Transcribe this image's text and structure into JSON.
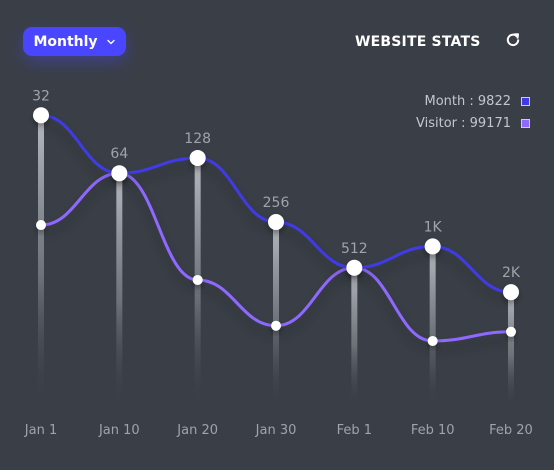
{
  "header": {
    "dropdown_label": "Monthly",
    "title": "WEBSITE STATS"
  },
  "legend": {
    "month_text": "Month : 9822",
    "visitor_text": "Visitor : 99171"
  },
  "colors": {
    "background": "#3a3f47",
    "accent": "#4a45ff",
    "month_line": "#3f3ae6",
    "visitor_line": "#8f68ff",
    "text_muted": "#c3c6cc"
  },
  "chart_data": {
    "type": "line",
    "categories": [
      "Jan 1",
      "Jan 10",
      "Jan 20",
      "Jan 30",
      "Feb 1",
      "Feb 10",
      "Feb 20"
    ],
    "point_labels": [
      "32",
      "64",
      "128",
      "256",
      "512",
      "1K",
      "2K"
    ],
    "series": [
      {
        "name": "Month",
        "values": [
          0.95,
          0.76,
          0.81,
          0.6,
          0.45,
          0.52,
          0.37
        ]
      },
      {
        "name": "Visitor",
        "values": [
          0.59,
          0.76,
          0.41,
          0.26,
          0.45,
          0.21,
          0.24
        ]
      }
    ],
    "grid": false,
    "legend_position": "top-right"
  }
}
